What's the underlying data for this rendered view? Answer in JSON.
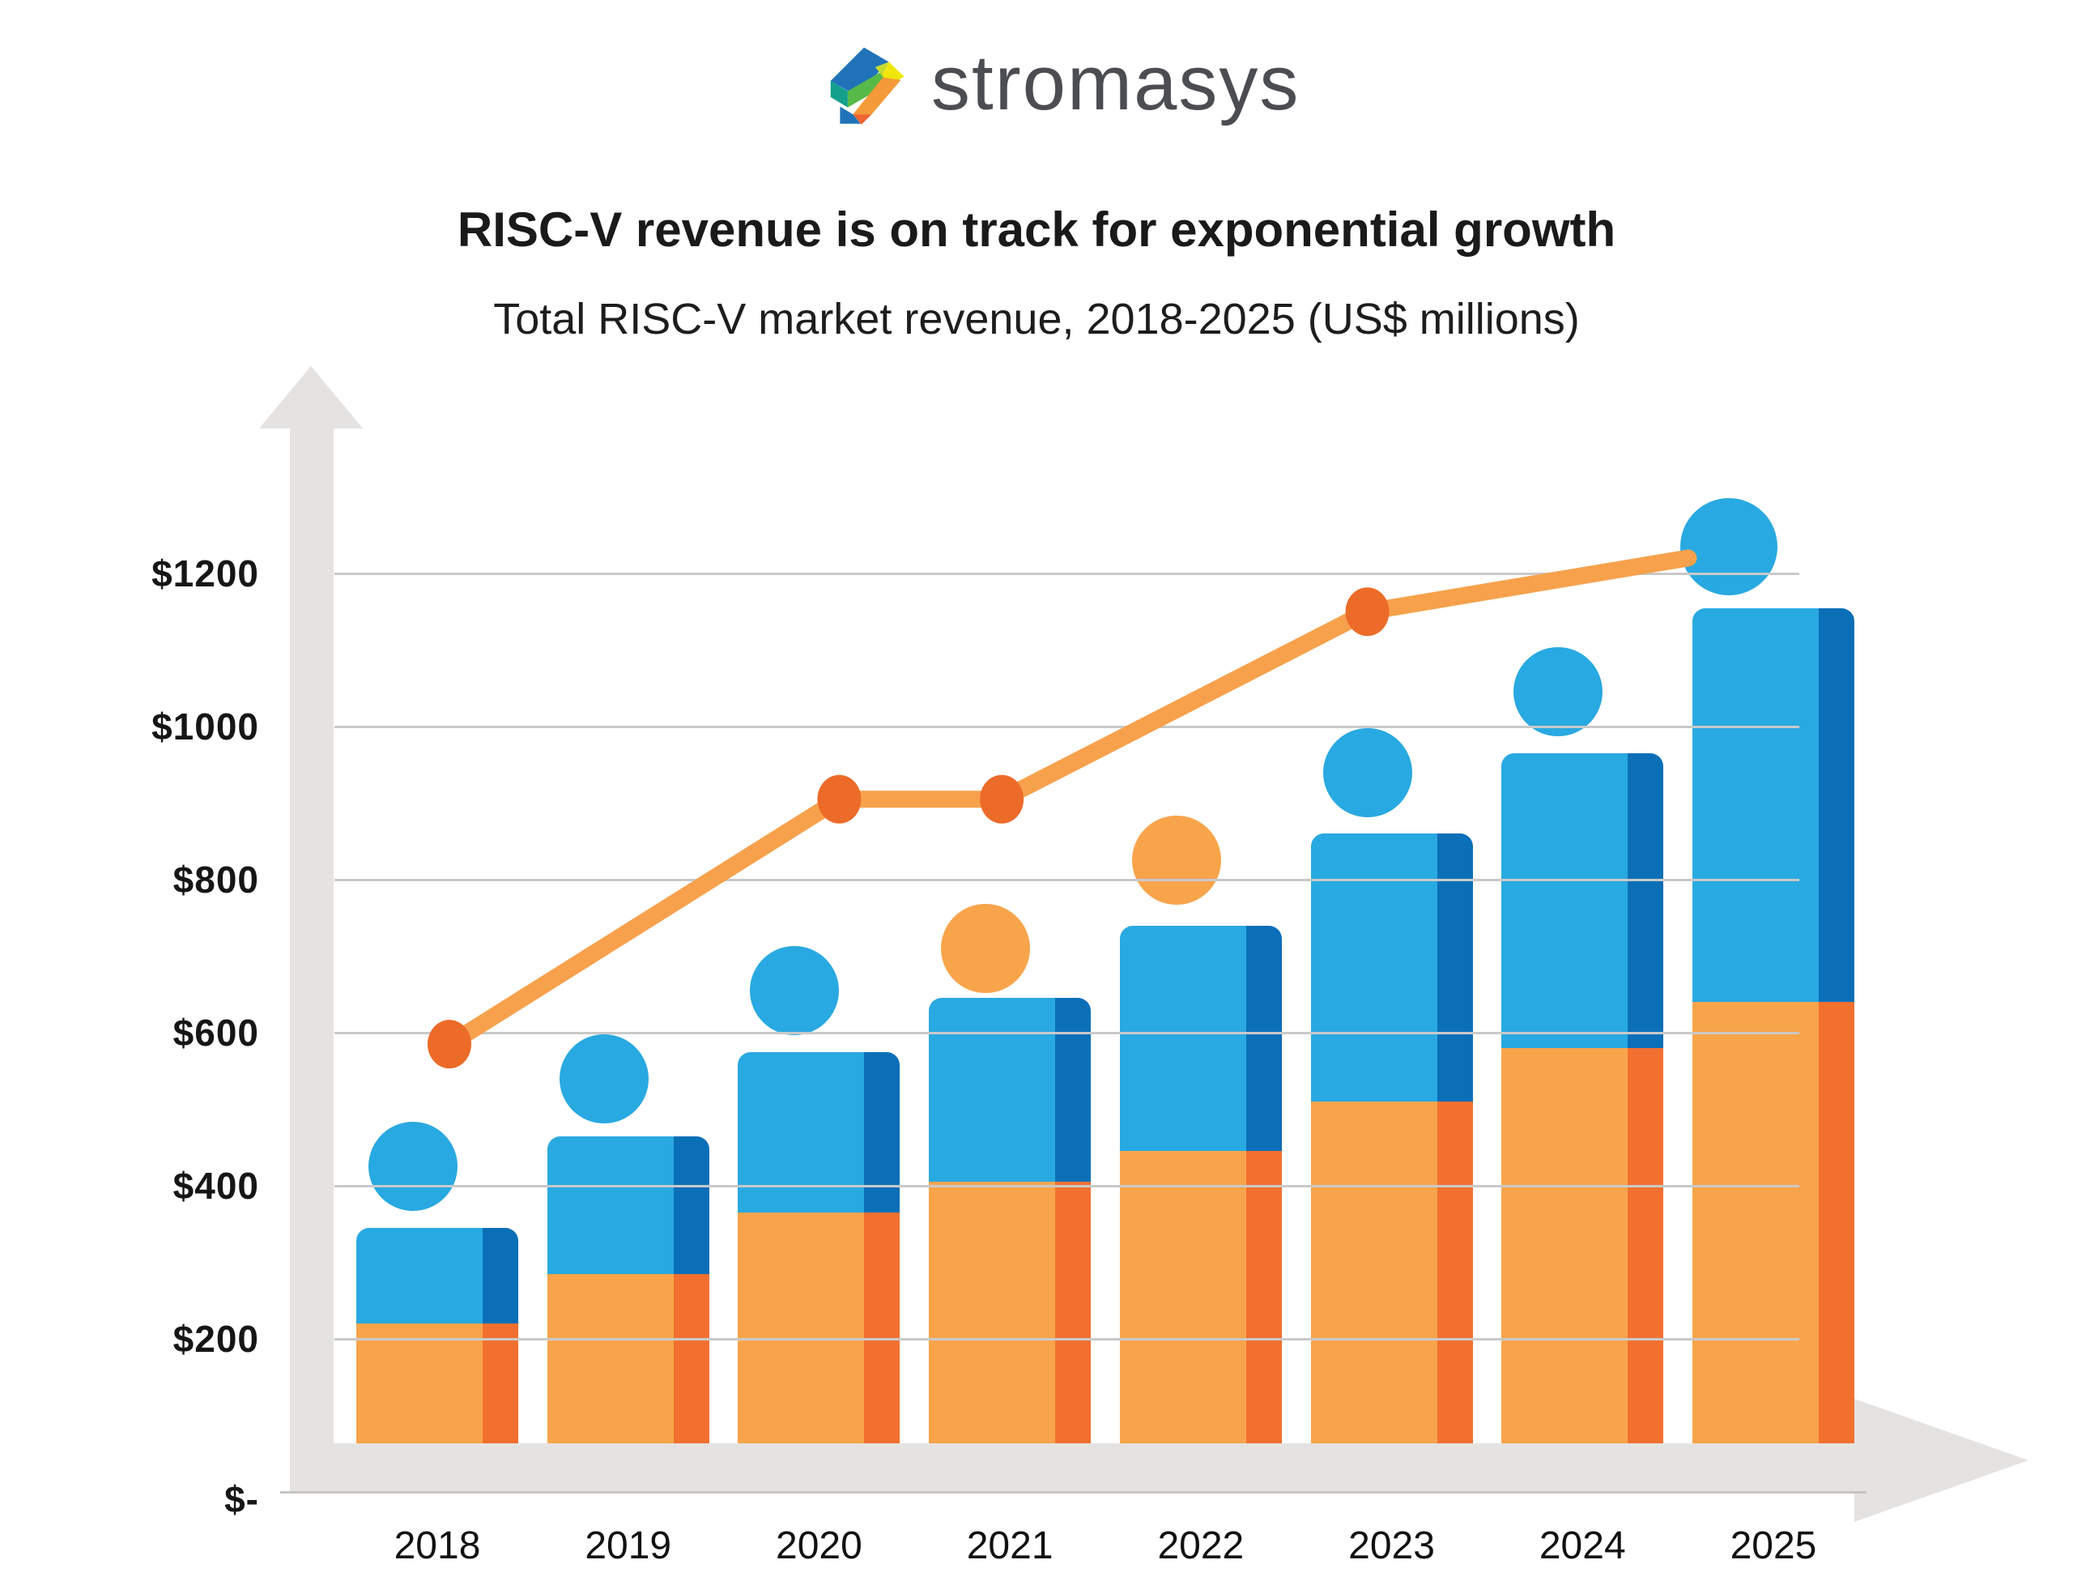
{
  "logo": {
    "brand": "stromasys",
    "icon": "stromasys-hex-s-logo"
  },
  "header": {
    "title": "RISC-V revenue is on track for exponential growth",
    "subtitle": "Total RISC-V market revenue, 2018-2025 (US$ millions)"
  },
  "chart_data": {
    "type": "bar",
    "title": "RISC-V revenue is on track for exponential growth",
    "subtitle": "Total RISC-V market revenue, 2018-2025 (US$ millions)",
    "unit": "US$ millions",
    "xlabel": "",
    "ylabel": "",
    "ylim": [
      0,
      1400
    ],
    "grid": true,
    "legend": false,
    "categories": [
      "2018",
      "2019",
      "2020",
      "2021",
      "2022",
      "2023",
      "2024",
      "2025"
    ],
    "series": [
      {
        "name": "orange-lower-segment",
        "color": "#F8A44B",
        "side_color": "#F1702F",
        "values": [
          220,
          285,
          365,
          405,
          445,
          510,
          580,
          640
        ]
      },
      {
        "name": "blue-upper-segment",
        "color": "#29A9E1",
        "side_color": "#0B6FB8",
        "values": [
          125,
          180,
          210,
          240,
          295,
          350,
          385,
          515
        ]
      }
    ],
    "stacked_totals": [
      345,
      465,
      575,
      645,
      740,
      860,
      965,
      1155
    ],
    "person_heads": {
      "comment": "decorative circles above each bar (person pictograms)",
      "values": [
        425,
        540,
        655,
        710,
        825,
        940,
        1045,
        1235
      ],
      "colors": [
        "#29A9E1",
        "#29A9E1",
        "#29A9E1",
        "#F8A44B",
        "#F8A44B",
        "#29A9E1",
        "#29A9E1",
        "#29A9E1"
      ]
    },
    "line_overlay": {
      "color": "#F7A14C",
      "marker_color": "#EC6B28",
      "points": [
        {
          "category": "2018",
          "value": 585,
          "marker": true
        },
        {
          "category": "2020",
          "value": 905,
          "marker": true
        },
        {
          "category": "2021",
          "value": 905,
          "marker": true
        },
        {
          "category": "2023",
          "value": 1150,
          "marker": true
        },
        {
          "category": "2025",
          "value": 1235,
          "marker": false
        }
      ]
    },
    "y_axis": {
      "ticks": [
        {
          "label": "$-",
          "value": 0
        },
        {
          "label": "$200",
          "value": 200
        },
        {
          "label": "$400",
          "value": 400
        },
        {
          "label": "$600",
          "value": 600
        },
        {
          "label": "$800",
          "value": 800
        },
        {
          "label": "$1000",
          "value": 1000
        },
        {
          "label": "$1200",
          "value": 1200
        }
      ]
    }
  }
}
